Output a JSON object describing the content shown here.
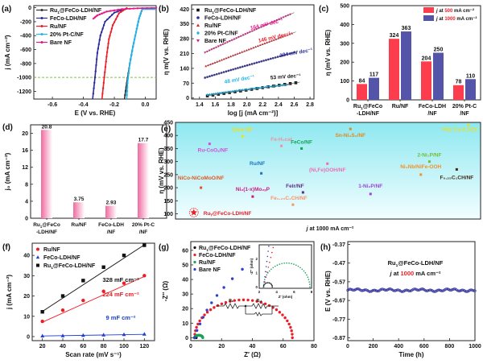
{
  "chart_data": [
    {
      "panel": "(a)",
      "type": "line",
      "xlabel": "E (V vs. RHE)",
      "ylabel": "j (mA cm⁻²)",
      "xlim": [
        -0.72,
        0.07
      ],
      "ylim": [
        -1310,
        30
      ],
      "xticks": [
        -0.6,
        -0.4,
        -0.2,
        0.0
      ],
      "xtick_labels": [
        "-0.6",
        "-0.4",
        "-0.2",
        "0.0"
      ],
      "yticks": [
        0,
        -200,
        -400,
        -600,
        -800,
        -1000,
        -1200
      ],
      "ytick_labels": [
        "0",
        "-200",
        "-400",
        "-600",
        "-800",
        "-1000",
        "-1200"
      ],
      "reference_line": {
        "y": -1000,
        "color": "#7dc242",
        "style": "dashed"
      },
      "legend_position": "top-left",
      "series": [
        {
          "name": "Ruᵧ@FeCo-LDH/NF",
          "label": "Ru",
          "sub": "1",
          "rest": "@FeCo-LDH/NF",
          "color": "#333333",
          "x": [
            -0.02,
            -0.04,
            -0.06,
            -0.08,
            -0.1,
            -0.12,
            -0.135
          ],
          "y": [
            -20,
            -150,
            -350,
            -560,
            -800,
            -1080,
            -1310
          ]
        },
        {
          "name": "FeCo-LDH/NF",
          "label": "FeCo-LDH/NF",
          "color": "#2b2b9a",
          "x": [
            -0.12,
            -0.2,
            -0.26,
            -0.29,
            -0.31,
            -0.325,
            -0.34
          ],
          "y": [
            -10,
            -70,
            -200,
            -400,
            -650,
            -1000,
            -1310
          ]
        },
        {
          "name": "Ru/NF",
          "label": "Ru/NF",
          "color": "#ee1c25",
          "x": [
            -0.12,
            -0.17,
            -0.21,
            -0.235,
            -0.25,
            -0.265,
            -0.28
          ],
          "y": [
            -5,
            -80,
            -250,
            -450,
            -700,
            -1000,
            -1310
          ]
        },
        {
          "name": "20% Pt-C/NF",
          "label": "20% Pt-C/NF",
          "color": "#1fb5ea",
          "x": [
            -0.02,
            -0.04,
            -0.06,
            -0.08,
            -0.1,
            -0.115,
            -0.12
          ],
          "y": [
            -20,
            -150,
            -350,
            -560,
            -800,
            -1080,
            -1310
          ]
        },
        {
          "name": "Bare NF",
          "label": "Bare NF",
          "color": "#e8168a",
          "x": [
            0.07,
            -0.05,
            -0.15,
            -0.25,
            -0.31,
            -0.34
          ],
          "y": [
            -2,
            -8,
            -20,
            -55,
            -110,
            -165
          ]
        }
      ]
    },
    {
      "panel": "(b)",
      "type": "scatter",
      "xlabel": "log [j (mA cm⁻²)]",
      "ylabel": "η m(V vs. RHE)",
      "xlim": [
        1.3,
        2.85
      ],
      "ylim": [
        -5,
        440
      ],
      "xticks": [
        1.4,
        1.6,
        1.8,
        2.0,
        2.2,
        2.4,
        2.6,
        2.8
      ],
      "xtick_labels": [
        "1.4",
        "1.6",
        "1.8",
        "2.0",
        "2.2",
        "2.4",
        "2.6",
        "2.8"
      ],
      "yticks": [
        0,
        70,
        140,
        210,
        280,
        350,
        420
      ],
      "ytick_labels": [
        "0",
        "70",
        "140",
        "210",
        "280",
        "350",
        "420"
      ],
      "legend_position": "top-left",
      "series": [
        {
          "name": "Ruᵧ@FeCo-LDH/NF",
          "label": "Ru",
          "sub": "1",
          "rest": "@FeCo-LDH/NF",
          "color": "#111111",
          "marker": "square",
          "x0": 1.5,
          "y0": 10,
          "x1": 2.62,
          "y1": 72,
          "tafel": "53 mV dec⁻¹"
        },
        {
          "name": "FeCo-LDH/NF",
          "label": "FeCo-LDH/NF",
          "color": "#2b2b9a",
          "marker": "circle",
          "x0": 1.47,
          "y0": 96,
          "x1": 2.6,
          "y1": 215,
          "tafel": "104 mV dec⁻¹"
        },
        {
          "name": "Ru/NF",
          "label": "Ru/NF",
          "color": "#ee1c25",
          "marker": "triangle-up",
          "x0": 1.48,
          "y0": 150,
          "x1": 2.57,
          "y1": 305,
          "tafel": "146 mV dec⁻¹"
        },
        {
          "name": "20% Pt-C/NF",
          "label": "20% Pt-C/NF",
          "color": "#1fb5ea",
          "marker": "diamond",
          "x0": 1.5,
          "y0": 15,
          "x1": 2.5,
          "y1": 62,
          "tafel": "48 mV dec⁻¹"
        },
        {
          "name": "Bare NF",
          "label": "Bare NF",
          "color": "#e8168a",
          "marker": "triangle-down",
          "x0": 1.47,
          "y0": 215,
          "x1": 2.55,
          "y1": 395,
          "tafel": "164 mV dec⁻¹"
        }
      ]
    },
    {
      "panel": "(c)",
      "type": "bar",
      "ylabel": "η (mV vs. RHE)",
      "ylim": [
        0,
        500
      ],
      "yticks": [
        0,
        100,
        200,
        300,
        400,
        500
      ],
      "ytick_labels": [
        "0",
        "100",
        "200",
        "300",
        "400",
        "500"
      ],
      "categories": [
        "Ruᵧ@FeCo\n-LDH/NF",
        "Ru/NF",
        "FeCo-LDH\n/NF",
        "20% Pt-C\n/NF"
      ],
      "category_lines": [
        [
          "Ru1@FeCo",
          "-LDH/NF"
        ],
        [
          "Ru/NF"
        ],
        [
          "FeCo-LDH",
          "/NF"
        ],
        [
          "20% Pt-C",
          "/NF"
        ]
      ],
      "legend_position": "top-right",
      "series": [
        {
          "name": "j at 500 mA cm⁻²",
          "pre": "j at ",
          "num": "500",
          "post": " mA cm⁻²",
          "color": "#fb3d4e",
          "values": [
            84,
            324,
            204,
            78
          ]
        },
        {
          "name": "j at 1000 mA cm⁻²",
          "pre": "j at ",
          "num": "1000",
          "post": " mA cm⁻²",
          "color": "#5454a8",
          "values": [
            117,
            363,
            250,
            110
          ]
        }
      ]
    },
    {
      "panel": "(d)",
      "type": "bar",
      "ylabel": "j₀ (mA cm⁻²)",
      "ylim": [
        0,
        22
      ],
      "yticks": [
        0,
        4,
        8,
        12,
        16,
        20
      ],
      "ytick_labels": [
        "0",
        "4",
        "8",
        "12",
        "16",
        "20"
      ],
      "categories": [
        "Ru1@FeCo -LDH/NF",
        "Ru/NF",
        "FeCo-LDH /NF",
        "20% Pt-C /NF"
      ],
      "category_lines": [
        [
          "Ru1@FeCo",
          "-LDH/NF"
        ],
        [
          "Ru/NF"
        ],
        [
          "FeCo-LDH",
          "/NF"
        ],
        [
          "20% Pt-C",
          "/NF"
        ]
      ],
      "values": [
        20.8,
        3.75,
        2.93,
        17.7
      ],
      "value_labels": [
        "20.8",
        "3.75",
        "2.93",
        "17.7"
      ],
      "color": "#f06ba0"
    },
    {
      "panel": "(e)",
      "type": "scatter",
      "xlabel": "j at 1000 mA cm⁻²",
      "ylabel": "η (mV vs. RHE)",
      "ylim": [
        80,
        450
      ],
      "yticks": [
        100,
        150,
        200,
        250,
        300,
        350,
        400,
        450
      ],
      "ytick_labels": [
        "100",
        "150",
        "200",
        "250",
        "300",
        "350",
        "400",
        "450"
      ],
      "xlim": [
        0,
        1
      ],
      "points": [
        {
          "label": "Ruᵧ@FeCo-LDH/NF",
          "x": 0.03,
          "y": 105,
          "color": "#ee1c25",
          "marker": "star"
        },
        {
          "label": "NiCo-NiCoMoO/NF",
          "x": 0.055,
          "y": 200,
          "color": "#e2561e"
        },
        {
          "label": "Ru-CoOₓ/NF",
          "x": 0.085,
          "y": 368,
          "color": "#d34ed7"
        },
        {
          "label": "Bare NF",
          "x": 0.2,
          "y": 397,
          "color": "#f2e010"
        },
        {
          "label": "Ni₂(1-x)Mo₂ₓP",
          "x": 0.235,
          "y": 166,
          "color": "#d2157f"
        },
        {
          "label": "Ru/NF",
          "x": 0.265,
          "y": 255,
          "color": "#1f74bf"
        },
        {
          "label": "Fe-H₂cat",
          "x": 0.335,
          "y": 360,
          "color": "#f28fa2"
        },
        {
          "label": "FeCo/NF",
          "x": 0.405,
          "y": 350,
          "color": "#12a350"
        },
        {
          "label": "Felr/NF",
          "x": 0.41,
          "y": 182,
          "color": "#5c2b8b"
        },
        {
          "label": "Fe₀.₂₅C₁CH/NF",
          "x": 0.375,
          "y": 135,
          "color": "#f7946a"
        },
        {
          "label": "(Ni,Fe)OOH/NF",
          "x": 0.495,
          "y": 292,
          "color": "#f06bb5"
        },
        {
          "label": "Sn-Ni₃S₂/NF",
          "x": 0.575,
          "y": 425,
          "color": "#e4891b"
        },
        {
          "label": "1-Ni₂P/NF",
          "x": 0.645,
          "y": 176,
          "color": "#9c45d8"
        },
        {
          "label": "Ni₃Nb/NiFe-OOH",
          "x": 0.82,
          "y": 250,
          "color": "#f9901f"
        },
        {
          "label": "2-Ni₂P/NF",
          "x": 0.85,
          "y": 300,
          "color": "#72be3b"
        },
        {
          "label": "F₀.₂₅C₁CH/NF",
          "x": 0.945,
          "y": 270,
          "color": "#3e2a16"
        },
        {
          "label": "Pt@ Cu-0.3/CF",
          "x": 0.985,
          "y": 440,
          "color": "#e8e024"
        }
      ]
    },
    {
      "panel": "(f)",
      "type": "scatter",
      "xlabel": "Scan rate (mV s⁻¹)",
      "ylabel": "j (mA cm⁻²)",
      "xlim": [
        10,
        130
      ],
      "ylim": [
        -2,
        46
      ],
      "xticks": [
        20,
        40,
        60,
        80,
        100,
        120
      ],
      "xtick_labels": [
        "20",
        "40",
        "60",
        "80",
        "100",
        "120"
      ],
      "yticks": [
        0,
        10,
        20,
        30,
        40
      ],
      "ytick_labels": [
        "0",
        "10",
        "20",
        "30",
        "40"
      ],
      "legend_position": "top-left",
      "x": [
        20,
        40,
        60,
        80,
        100,
        120
      ],
      "series": [
        {
          "name": "Ru/NF",
          "label": "Ru/NF",
          "color": "#ee1c25",
          "marker": "circle",
          "values": [
            7.5,
            13,
            17.8,
            22.3,
            26.3,
            30
          ],
          "fit": [
            7.1,
            29.6
          ],
          "annotation": "224 mF cm⁻²"
        },
        {
          "name": "FeCo-LDH/NF",
          "label": "FeCo-LDH/NF",
          "color": "#1d3fd9",
          "marker": "triangle",
          "values": [
            0.3,
            0.4,
            0.6,
            0.8,
            1.0,
            1.2
          ],
          "fit": [
            0.3,
            1.1
          ],
          "annotation": "9 mF cm⁻²"
        },
        {
          "name": "Ruᵧ@FeCo-LDH/NF",
          "label": "Ru",
          "sub": "1",
          "rest": "@FeCo-LDH/NF",
          "color": "#111111",
          "marker": "square",
          "values": [
            12.2,
            20,
            27.6,
            34.2,
            40,
            45
          ],
          "fit": [
            12.4,
            45.2
          ],
          "annotation": "328 mF cm⁻²"
        }
      ]
    },
    {
      "panel": "(g)",
      "type": "scatter",
      "xlabel": "Z′ (Ω)",
      "ylabel": "-Z″ (Ω)",
      "xlim": [
        0,
        80
      ],
      "ylim": [
        -2,
        66
      ],
      "xticks": [
        0,
        20,
        40,
        60,
        80
      ],
      "xtick_labels": [
        "0",
        "20",
        "40",
        "60",
        "80"
      ],
      "yticks": [
        0,
        10,
        20,
        30,
        40,
        50,
        60
      ],
      "ytick_labels": [
        "0",
        "10",
        "20",
        "30",
        "40",
        "50",
        "60"
      ],
      "legend_position": "top-left",
      "series": [
        {
          "name": "Ruᵧ@FeCo-LDH/NF",
          "label": "Ru",
          "sub": "1",
          "rest": "@FeCo-LDH/NF",
          "color": "#111111",
          "arc": {
            "x0": 2.5,
            "x1": 3.5,
            "h": 0.3
          }
        },
        {
          "name": "FeCo-LDH/NF",
          "label": "FeCo-LDH/NF",
          "color": "#ee1c25",
          "arc": {
            "x0": 2.5,
            "x1": 66,
            "h": 26
          }
        },
        {
          "name": "Ru/NF",
          "label": "Ru/NF",
          "color": "#18a05a",
          "arc": {
            "x0": 2.5,
            "x1": 7.8,
            "h": 1.7
          }
        },
        {
          "name": "Bare NF",
          "label": "Bare NF",
          "color": "#3040c8",
          "capacitive": {
            "x": [
              2.5,
              4,
              6,
              8,
              10.5,
              13.5,
              17,
              21.5,
              27,
              33.5
            ],
            "y": [
              0,
              5,
              9.5,
              14,
              19,
              24,
              29,
              34.5,
              40.5,
              47
            ]
          }
        }
      ],
      "inset": {
        "xlabel": "Z′ (ohm)",
        "ylabel": "-Z″ (ohm)",
        "xlim": [
          2,
          8
        ],
        "ylim": [
          -0.1,
          3
        ],
        "xticks": [
          2,
          4,
          6,
          8
        ],
        "yticks": [
          0,
          1,
          2
        ],
        "series": [
          {
            "color": "#111111",
            "arc": {
              "x0": 2.5,
              "x1": 3.5,
              "h": 0.3
            }
          },
          {
            "color": "#18a05a",
            "arc": {
              "x0": 2.5,
              "x1": 7.8,
              "h": 1.7
            }
          },
          {
            "color": "#ee1c25",
            "line": {
              "x": [
                2.5,
                3.6
              ],
              "y": [
                0,
                2.8
              ]
            }
          },
          {
            "color": "#3040c8",
            "line": {
              "x": [
                2.5,
                3.1
              ],
              "y": [
                0,
                2.9
              ]
            }
          }
        ]
      },
      "circuit": {
        "r1_label": "Rₛ",
        "r2_label": "Rₓₜ"
      }
    },
    {
      "panel": "(h)",
      "type": "line",
      "xlabel": "Time (h)",
      "ylabel": "E (V vs. RHE)",
      "xlim": [
        0,
        1000
      ],
      "ylim": [
        -0.885,
        -0.355
      ],
      "xticks": [
        0,
        200,
        400,
        600,
        800,
        1000
      ],
      "xtick_labels": [
        "0",
        "200",
        "400",
        "600",
        "800",
        "1000"
      ],
      "yticks": [
        -0.37,
        -0.47,
        -0.57,
        -0.67,
        -0.77,
        -0.87
      ],
      "ytick_labels": [
        "-0.37",
        "-0.47",
        "-0.57",
        "-0.67",
        "-0.77",
        "-0.87"
      ],
      "series": [
        {
          "name": "Ruᵧ@FeCo-LDH/NF",
          "color": "#2b2b9a",
          "value": -0.615
        }
      ],
      "annotation_title": "Ruᵧ@FeCo-LDH/NF",
      "annotation_pre": "j at ",
      "annotation_num": "1000",
      "annotation_post": " mA cm⁻²"
    }
  ]
}
